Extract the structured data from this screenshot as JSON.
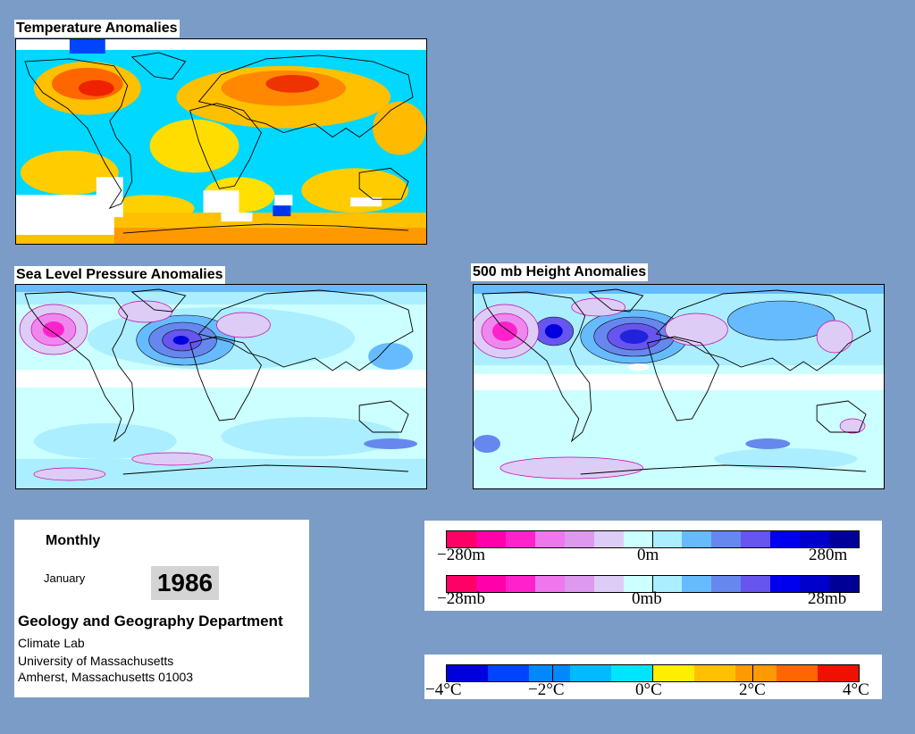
{
  "panels": {
    "temperature": {
      "title": "Temperature Anomalies"
    },
    "slp": {
      "title": "Sea Level Pressure Anomalies"
    },
    "height500": {
      "title": "500 mb Height Anomalies"
    }
  },
  "info": {
    "period": "Monthly",
    "month": "January",
    "year": "1986",
    "department": "Geology and Geography Department",
    "lines": [
      "Climate Lab",
      "University of Massachusetts",
      "Amherst, Massachusetts 01003"
    ]
  },
  "legends": {
    "height": {
      "min": "−280m",
      "mid": "0m",
      "max": "280m"
    },
    "pressure": {
      "min": "−28mb",
      "mid": "0mb",
      "max": "28mb"
    },
    "temperature": {
      "labels": [
        "−4°C",
        "−2°C",
        "0°C",
        "2°C",
        "4°C"
      ]
    }
  },
  "colors": {
    "background": "#7b9cc6",
    "pressure_scale": [
      "#ff0066",
      "#ff00aa",
      "#ff22cc",
      "#ee77ee",
      "#dd99ee",
      "#ddccf5",
      "#ccffff",
      "#aaeeff",
      "#66bbff",
      "#6688ee",
      "#6655ee",
      "#0000ee",
      "#0000cc",
      "#000099"
    ],
    "temperature_scale": [
      "#0000dd",
      "#0044ff",
      "#0088ff",
      "#00bbff",
      "#00e5ff",
      "#ffee00",
      "#ffc000",
      "#ff9900",
      "#ff6600",
      "#ee1100"
    ]
  }
}
